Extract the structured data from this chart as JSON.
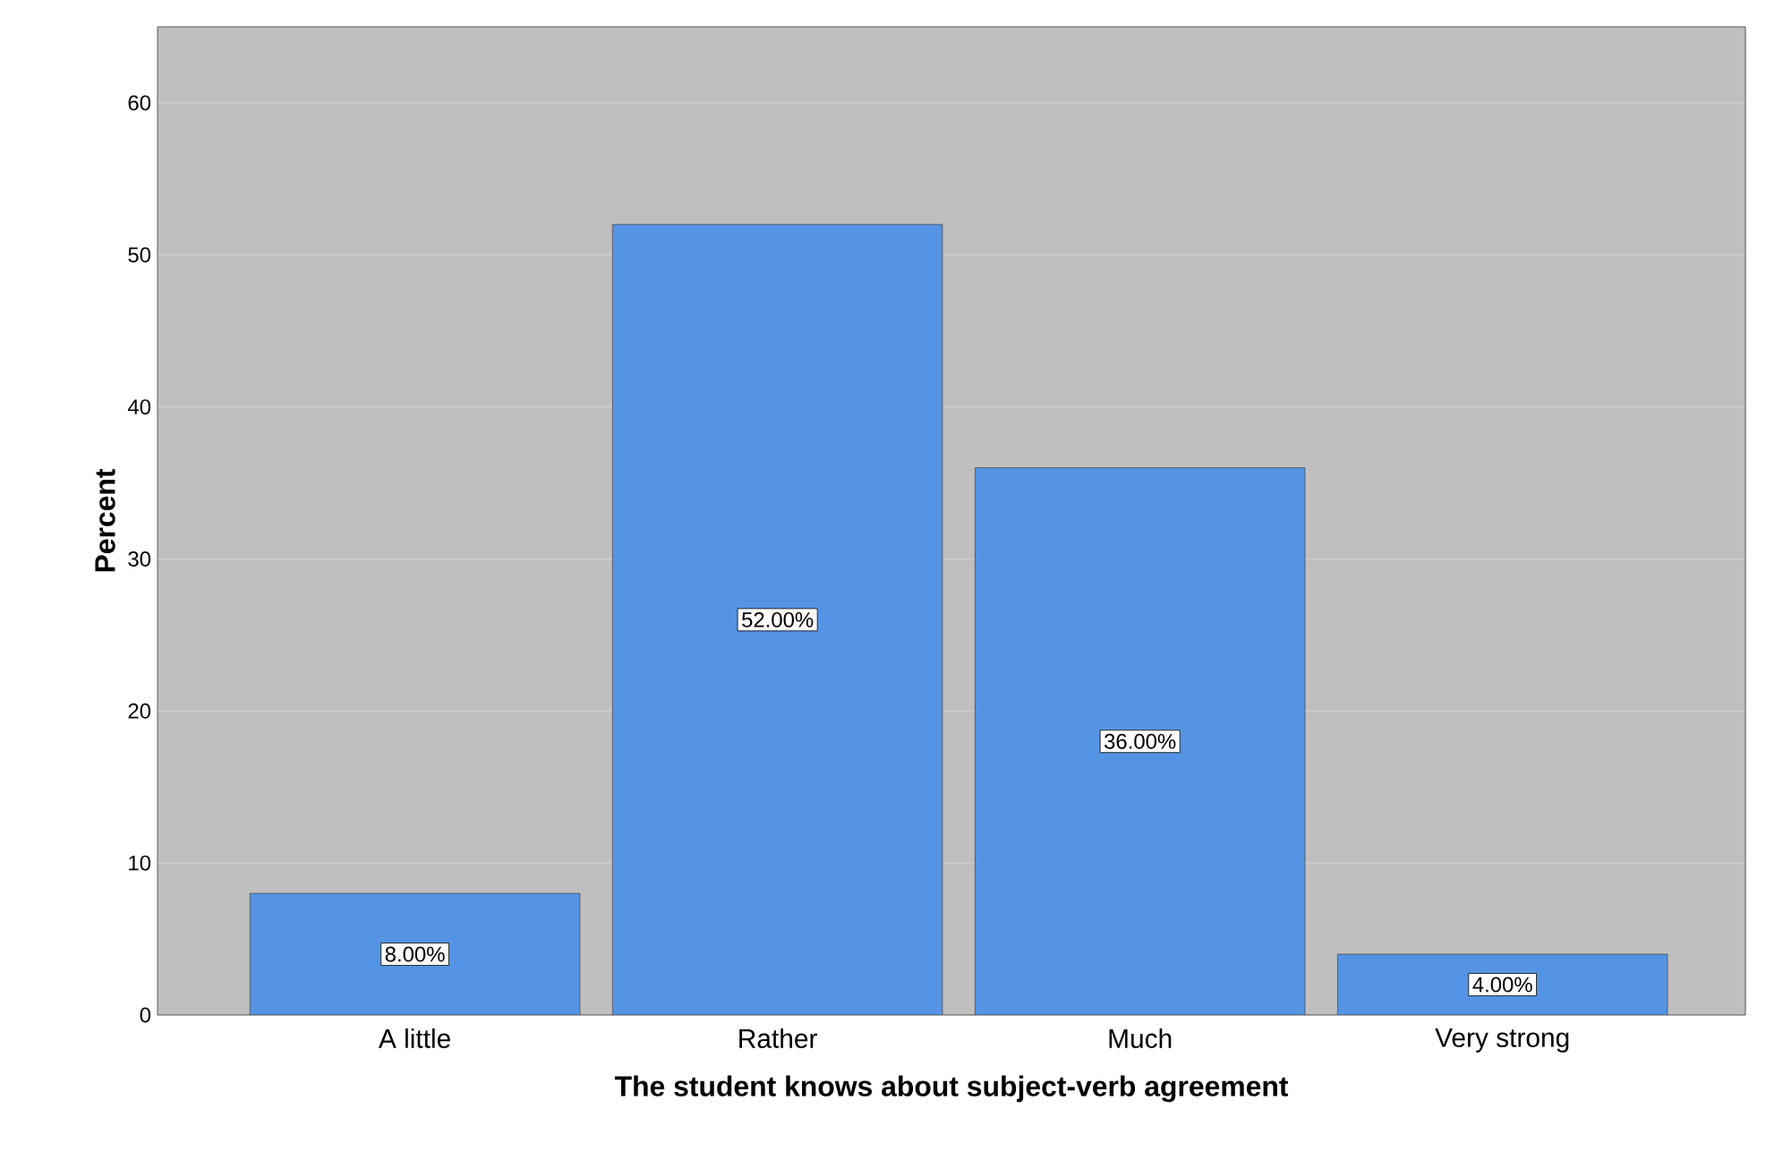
{
  "chart_data": {
    "type": "bar",
    "xlabel": "The student knows about subject-verb agreement",
    "ylabel": "Percent",
    "categories": [
      "A little",
      "Rather",
      "Much",
      "Very strong"
    ],
    "values": [
      8,
      52,
      36,
      4
    ],
    "color": "#5594e4",
    "value_labels": [
      "8.00%",
      "52.00%",
      "36.00%",
      "4.00%"
    ],
    "ylim": [
      0,
      65
    ],
    "yticks": [
      0,
      10,
      20,
      30,
      40,
      50,
      60
    ],
    "grid": "y"
  }
}
